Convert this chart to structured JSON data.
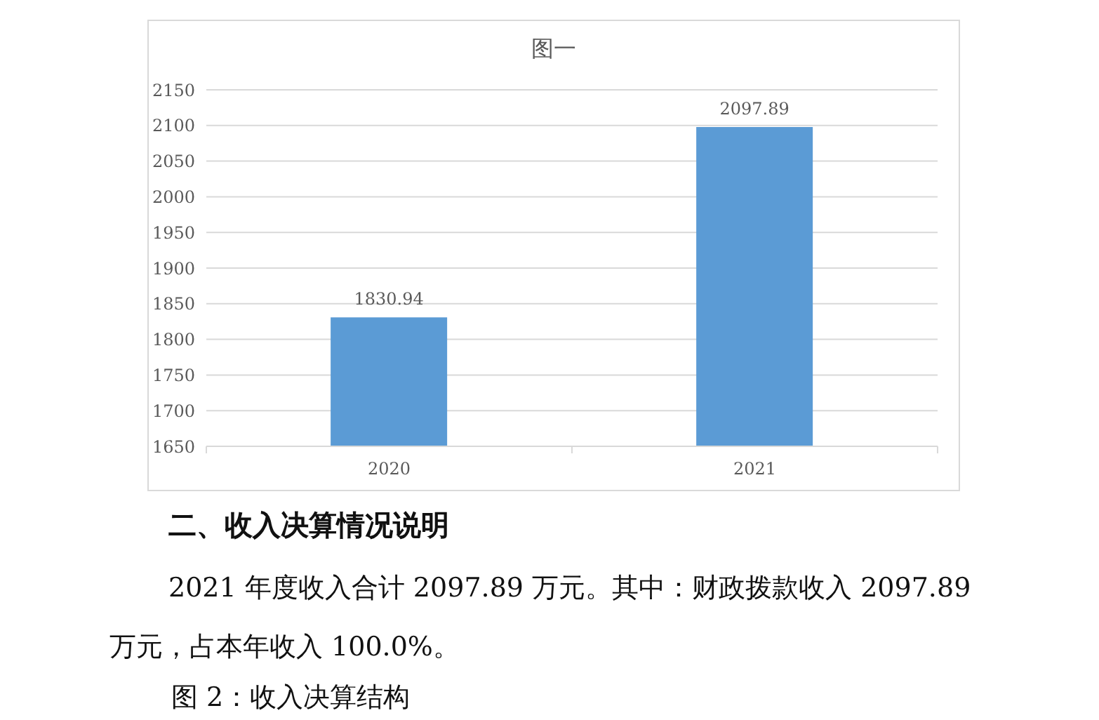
{
  "chart_data": {
    "type": "bar",
    "title": "图一",
    "categories": [
      "2020",
      "2021"
    ],
    "values": [
      1830.94,
      2097.89
    ],
    "color": "#5b9bd5",
    "ylim": [
      1650,
      2150
    ],
    "yticks": [
      1650,
      1700,
      1750,
      1800,
      1850,
      1900,
      1950,
      2000,
      2050,
      2100,
      2150
    ],
    "grid": "y",
    "data_labels": true,
    "annotations": [
      "二、收入决算情况说明",
      "2021 年度收入合计 2097.89 万元。其中：财政拨款收入 2097.89 万元，占本年收入 100.0%。",
      "图 2：收入决算结构"
    ]
  }
}
